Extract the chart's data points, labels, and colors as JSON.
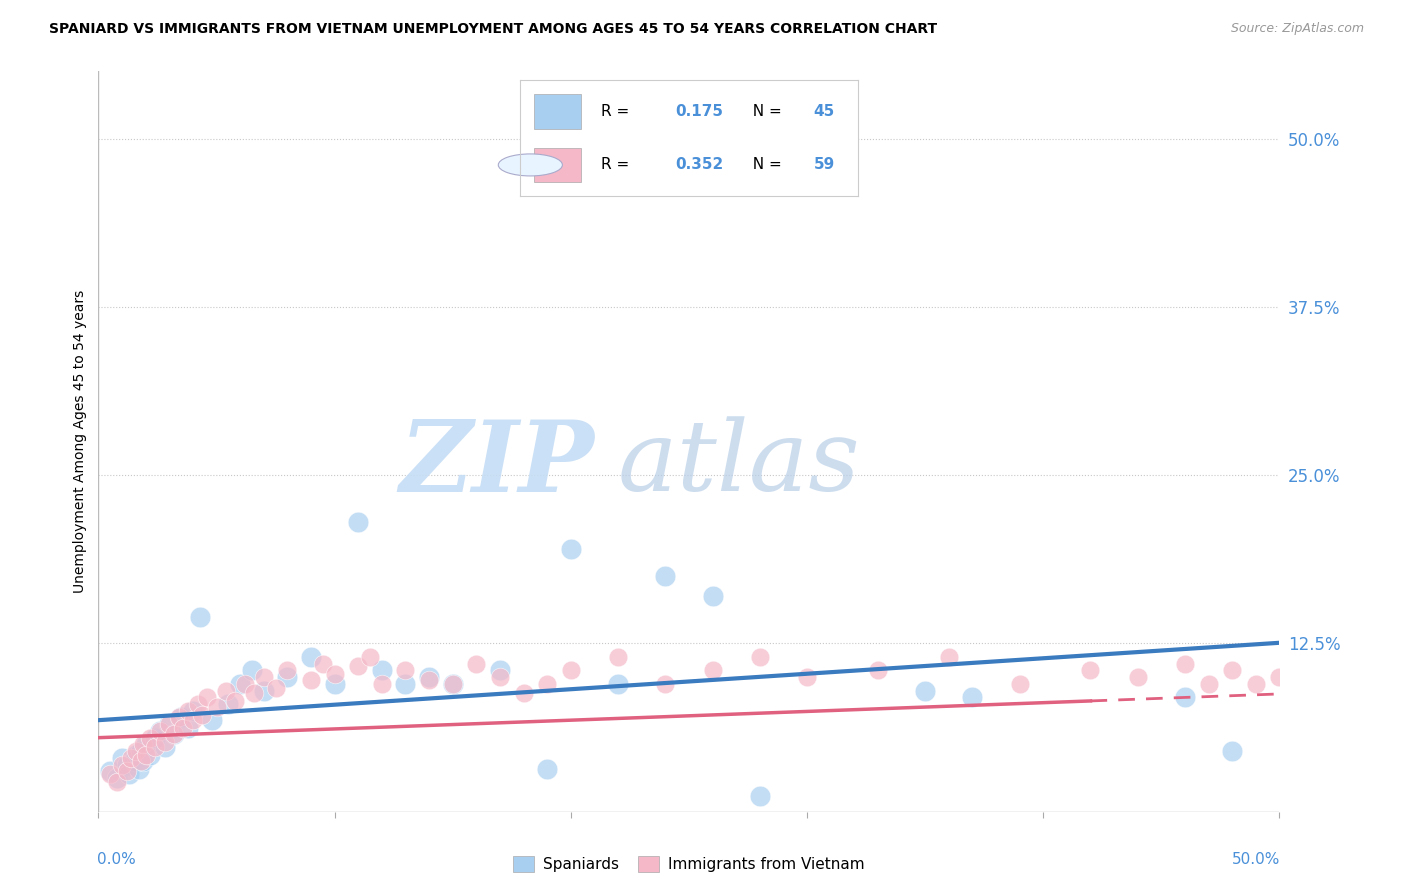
{
  "title": "SPANIARD VS IMMIGRANTS FROM VIETNAM UNEMPLOYMENT AMONG AGES 45 TO 54 YEARS CORRELATION CHART",
  "source": "Source: ZipAtlas.com",
  "ylabel": "Unemployment Among Ages 45 to 54 years",
  "ytick_labels": [
    "50.0%",
    "37.5%",
    "25.0%",
    "12.5%"
  ],
  "ytick_values": [
    0.5,
    0.375,
    0.25,
    0.125
  ],
  "xlim": [
    0.0,
    0.5
  ],
  "ylim": [
    0.0,
    0.55
  ],
  "legend1_R": "0.175",
  "legend1_N": "45",
  "legend2_R": "0.352",
  "legend2_N": "59",
  "blue_color": "#a8cff0",
  "pink_color": "#f5b8c8",
  "trendline_blue": "#3a7abf",
  "trendline_pink": "#e06080",
  "watermark_zip": "ZIP",
  "watermark_atlas": "atlas",
  "spaniards_x": [
    0.005,
    0.008,
    0.01,
    0.012,
    0.013,
    0.015,
    0.016,
    0.017,
    0.018,
    0.019,
    0.02,
    0.022,
    0.024,
    0.026,
    0.028,
    0.03,
    0.032,
    0.035,
    0.038,
    0.04,
    0.043,
    0.048,
    0.055,
    0.06,
    0.065,
    0.07,
    0.08,
    0.09,
    0.1,
    0.11,
    0.12,
    0.13,
    0.14,
    0.15,
    0.17,
    0.19,
    0.2,
    0.22,
    0.24,
    0.26,
    0.28,
    0.35,
    0.37,
    0.46,
    0.48
  ],
  "spaniards_y": [
    0.03,
    0.025,
    0.04,
    0.035,
    0.028,
    0.038,
    0.042,
    0.032,
    0.045,
    0.038,
    0.05,
    0.042,
    0.055,
    0.06,
    0.048,
    0.065,
    0.058,
    0.07,
    0.062,
    0.075,
    0.145,
    0.068,
    0.08,
    0.095,
    0.105,
    0.09,
    0.1,
    0.115,
    0.095,
    0.215,
    0.105,
    0.095,
    0.1,
    0.095,
    0.105,
    0.032,
    0.195,
    0.095,
    0.175,
    0.16,
    0.012,
    0.09,
    0.085,
    0.085,
    0.045
  ],
  "vietnam_x": [
    0.005,
    0.008,
    0.01,
    0.012,
    0.014,
    0.016,
    0.018,
    0.019,
    0.02,
    0.022,
    0.024,
    0.026,
    0.028,
    0.03,
    0.032,
    0.034,
    0.036,
    0.038,
    0.04,
    0.042,
    0.044,
    0.046,
    0.05,
    0.054,
    0.058,
    0.062,
    0.066,
    0.07,
    0.075,
    0.08,
    0.09,
    0.095,
    0.1,
    0.11,
    0.115,
    0.12,
    0.13,
    0.14,
    0.15,
    0.16,
    0.17,
    0.18,
    0.19,
    0.2,
    0.22,
    0.24,
    0.26,
    0.28,
    0.3,
    0.33,
    0.36,
    0.39,
    0.42,
    0.44,
    0.46,
    0.47,
    0.48,
    0.49,
    0.5
  ],
  "vietnam_y": [
    0.028,
    0.022,
    0.035,
    0.03,
    0.04,
    0.045,
    0.038,
    0.05,
    0.042,
    0.055,
    0.048,
    0.06,
    0.052,
    0.065,
    0.058,
    0.07,
    0.062,
    0.075,
    0.068,
    0.08,
    0.072,
    0.085,
    0.078,
    0.09,
    0.082,
    0.095,
    0.088,
    0.1,
    0.092,
    0.105,
    0.098,
    0.11,
    0.102,
    0.108,
    0.115,
    0.095,
    0.105,
    0.098,
    0.095,
    0.11,
    0.1,
    0.088,
    0.095,
    0.105,
    0.115,
    0.095,
    0.105,
    0.115,
    0.1,
    0.105,
    0.115,
    0.095,
    0.105,
    0.1,
    0.11,
    0.095,
    0.105,
    0.095,
    0.1
  ]
}
